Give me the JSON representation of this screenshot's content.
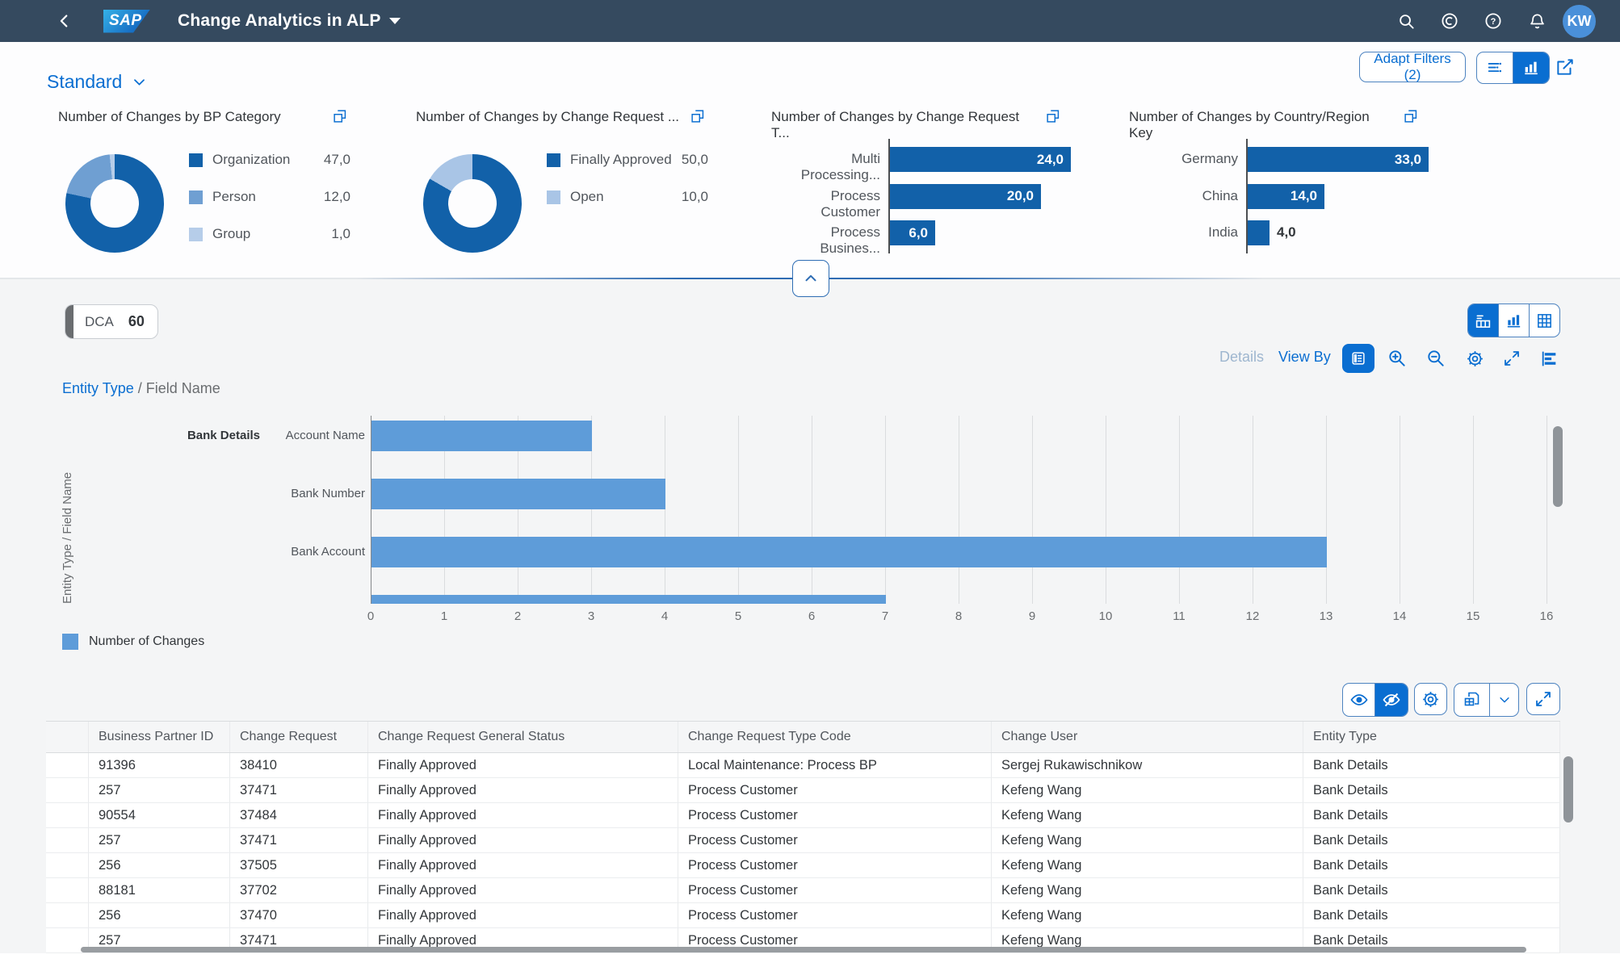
{
  "shell": {
    "title": "Change Analytics in ALP",
    "avatar": "KW",
    "icons": [
      "back-icon",
      "search-icon",
      "assistant-icon",
      "help-icon",
      "notifications-icon"
    ]
  },
  "filter_bar": {
    "variant": "Standard",
    "adapt_filters": "Adapt Filters (2)",
    "view_toggle_icons": [
      "filter-fields-icon",
      "chart-icon"
    ],
    "share_icon": "share-icon"
  },
  "colors": {
    "shell_bg": "#354a5f",
    "accent": "#0a6ed1",
    "card_dark_blue": "#1261a9",
    "main_bar_blue": "#5E9CD9",
    "avatar_bg": "#4a90d9"
  },
  "cards": [
    {
      "title": "Number of Changes by BP Category",
      "kind": "donut",
      "action_icon": "clone-icon",
      "items": [
        {
          "label": "Organization",
          "value": "47,0",
          "num": 47,
          "color": "#1261a9"
        },
        {
          "label": "Person",
          "value": "12,0",
          "num": 12,
          "color": "#6f9fd2"
        },
        {
          "label": "Group",
          "value": "1,0",
          "num": 1,
          "color": "#b6cde9"
        }
      ]
    },
    {
      "title": "Number of Changes by Change Request ...",
      "kind": "donut",
      "action_icon": "clone-icon",
      "items": [
        {
          "label": "Finally Approved",
          "value": "50,0",
          "num": 50,
          "color": "#1261a9"
        },
        {
          "label": "Open",
          "value": "10,0",
          "num": 10,
          "color": "#a9c5e6"
        }
      ]
    },
    {
      "title": "Number of Changes by Change Request T...",
      "kind": "hbar",
      "action_icon": "clone-icon",
      "items": [
        {
          "label": "Multi Processing...",
          "value": "24,0",
          "num": 24,
          "color": "#1261a9"
        },
        {
          "label": "Process Customer",
          "value": "20,0",
          "num": 20,
          "color": "#1261a9"
        },
        {
          "label": "Process Busines...",
          "value": "6,0",
          "num": 6,
          "color": "#1261a9"
        }
      ]
    },
    {
      "title": "Number of Changes by Country/Region Key",
      "kind": "hbar",
      "action_icon": "clone-icon",
      "items": [
        {
          "label": "Germany",
          "value": "33,0",
          "num": 33,
          "color": "#1261a9"
        },
        {
          "label": "China",
          "value": "14,0",
          "num": 14,
          "color": "#1261a9"
        },
        {
          "label": "India",
          "value": "4,0",
          "num": 4,
          "color": "#1261a9"
        }
      ]
    }
  ],
  "chart_section": {
    "chip": {
      "label": "DCA",
      "count": "60"
    },
    "details_label": "Details",
    "view_by_label": "View By",
    "breadcrumb": {
      "link": "Entity Type",
      "separator": " / ",
      "current": "Field Name"
    },
    "toolbar_icons": [
      "legend-toggle-icon",
      "zoom-in-icon",
      "zoom-out-icon",
      "settings-icon",
      "fullscreen-icon",
      "horizontal-bar-chart-icon"
    ],
    "view_switch_icons": [
      "hybrid-view-icon",
      "chart-view-icon",
      "table-view-icon"
    ]
  },
  "chart_data": {
    "type": "bar",
    "orientation": "horizontal",
    "y_axis_title": "Entity Type / Field Name",
    "group": "Bank Details",
    "categories": [
      "Account Name",
      "Bank Number",
      "Bank Account"
    ],
    "values": [
      3,
      4,
      13
    ],
    "overflow_bar_value": 7,
    "x_ticks": [
      0,
      1,
      2,
      3,
      4,
      5,
      6,
      7,
      8,
      9,
      10,
      11,
      12,
      13,
      14,
      15,
      16
    ],
    "xlim": [
      0,
      16
    ],
    "legend": "Number of Changes",
    "grid": true
  },
  "table": {
    "toolbar_icons": [
      "show-details-icon",
      "hide-details-icon",
      "settings-icon",
      "export-icon",
      "dropdown-chevron-icon",
      "fullscreen-icon"
    ],
    "headers": [
      "Business Partner ID",
      "Change Request",
      "Change Request General Status",
      "Change Request Type Code",
      "Change User",
      "Entity Type"
    ],
    "rows": [
      [
        "91396",
        "38410",
        "Finally Approved",
        "Local Maintenance: Process BP",
        "Sergej Rukawischnikow",
        "Bank Details"
      ],
      [
        "257",
        "37471",
        "Finally Approved",
        "Process Customer",
        "Kefeng Wang",
        "Bank Details"
      ],
      [
        "90554",
        "37484",
        "Finally Approved",
        "Process Customer",
        "Kefeng Wang",
        "Bank Details"
      ],
      [
        "257",
        "37471",
        "Finally Approved",
        "Process Customer",
        "Kefeng Wang",
        "Bank Details"
      ],
      [
        "256",
        "37505",
        "Finally Approved",
        "Process Customer",
        "Kefeng Wang",
        "Bank Details"
      ],
      [
        "88181",
        "37702",
        "Finally Approved",
        "Process Customer",
        "Kefeng Wang",
        "Bank Details"
      ],
      [
        "256",
        "37470",
        "Finally Approved",
        "Process Customer",
        "Kefeng Wang",
        "Bank Details"
      ],
      [
        "257",
        "37471",
        "Finally Approved",
        "Process Customer",
        "Kefeng Wang",
        "Bank Details"
      ]
    ]
  }
}
